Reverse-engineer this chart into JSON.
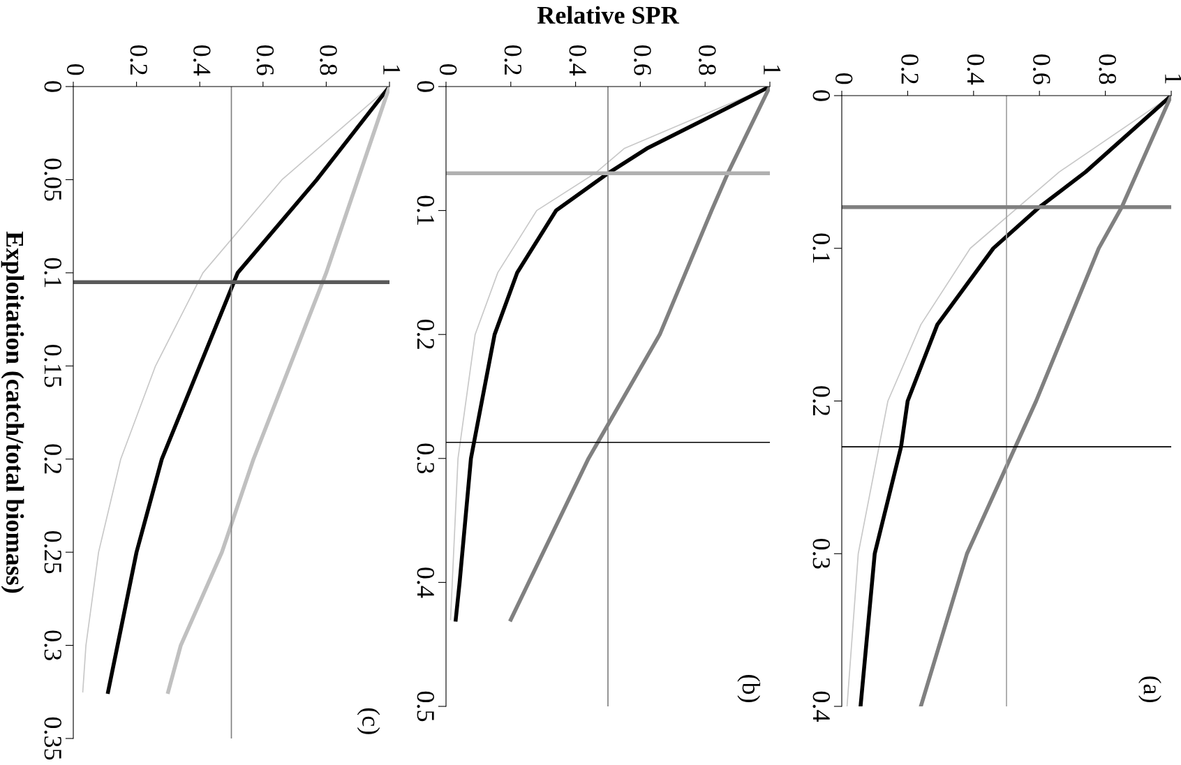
{
  "chart_data": [
    {
      "type": "line",
      "ylim": [
        0.35,
        0
      ],
      "yticks": [
        0,
        0.05,
        0.1,
        0.15,
        0.2,
        0.25,
        0.3,
        0.35
      ],
      "xlim": [
        0,
        1
      ],
      "xticks": [
        0,
        0.2,
        0.4,
        0.6,
        0.8,
        1
      ],
      "grid": false,
      "legend": false,
      "ylabel": "Exploitation (catch/total biomass)",
      "annotations": [
        "(c)"
      ],
      "series": [
        {
          "color": "#c8c8c8",
          "values": [
            0,
            0.05,
            0.1,
            0.15,
            0.2,
            0.25,
            0.3,
            0.325
          ],
          "x": [
            1,
            0.66,
            0.41,
            0.26,
            0.15,
            0.08,
            0.04,
            0.03
          ]
        },
        {
          "color": "#000000",
          "values": [
            0,
            0.05,
            0.1,
            0.15,
            0.2,
            0.25,
            0.3,
            0.325
          ],
          "x": [
            1,
            0.77,
            0.52,
            0.4,
            0.28,
            0.2,
            0.14,
            0.11
          ]
        },
        {
          "color": "#c0c0c0",
          "values": [
            0,
            0.1,
            0.2,
            0.25,
            0.3,
            0.325
          ],
          "x": [
            1,
            0.8,
            0.57,
            0.47,
            0.34,
            0.3
          ]
        }
      ],
      "ref_lines": [
        {
          "axis": "x",
          "value": 0.5,
          "color": "#808080"
        },
        {
          "axis": "y",
          "value": 0.105,
          "color": "#595959"
        }
      ]
    },
    {
      "type": "line",
      "ylim": [
        0.5,
        0
      ],
      "yticks": [
        0,
        0.1,
        0.2,
        0.3,
        0.4,
        0.5
      ],
      "xlim": [
        0,
        1
      ],
      "xticks": [
        0,
        0.2,
        0.4,
        0.6,
        0.8,
        1
      ],
      "grid": false,
      "legend": false,
      "xlabel": "Relative SPR",
      "annotations": [
        "(b)"
      ],
      "series": [
        {
          "color": "#c8c8c8",
          "values": [
            0,
            0.05,
            0.07,
            0.1,
            0.15,
            0.2,
            0.3,
            0.43
          ],
          "x": [
            1,
            0.55,
            0.46,
            0.28,
            0.16,
            0.09,
            0.037,
            0.014
          ]
        },
        {
          "color": "#000000",
          "values": [
            0,
            0.05,
            0.07,
            0.1,
            0.15,
            0.2,
            0.3,
            0.4,
            0.43
          ],
          "x": [
            1,
            0.62,
            0.5,
            0.34,
            0.22,
            0.15,
            0.077,
            0.042,
            0.03
          ]
        },
        {
          "color": "#808080",
          "values": [
            0,
            0.07,
            0.1,
            0.2,
            0.3,
            0.43
          ],
          "x": [
            1,
            0.87,
            0.82,
            0.66,
            0.44,
            0.2
          ]
        }
      ],
      "ref_lines": [
        {
          "axis": "x",
          "value": 0.5,
          "color": "#808080"
        },
        {
          "axis": "y",
          "value": 0.07,
          "color": "#b0b0b0"
        },
        {
          "axis": "y",
          "value": 0.287,
          "color": "#000000"
        }
      ]
    },
    {
      "type": "line",
      "ylim": [
        0.4,
        0
      ],
      "yticks": [
        0,
        0.1,
        0.2,
        0.3,
        0.4
      ],
      "xlim": [
        0,
        1
      ],
      "xticks": [
        0,
        0.2,
        0.4,
        0.6,
        0.8,
        1
      ],
      "grid": false,
      "legend": false,
      "annotations": [
        "(a)"
      ],
      "series": [
        {
          "color": "#c8c8c8",
          "values": [
            0,
            0.05,
            0.1,
            0.15,
            0.2,
            0.3,
            0.4
          ],
          "x": [
            1,
            0.66,
            0.39,
            0.24,
            0.14,
            0.05,
            0.016
          ]
        },
        {
          "color": "#000000",
          "values": [
            0,
            0.05,
            0.073,
            0.1,
            0.15,
            0.2,
            0.23,
            0.3,
            0.4
          ],
          "x": [
            1,
            0.74,
            0.6,
            0.46,
            0.29,
            0.2,
            0.18,
            0.1,
            0.057
          ]
        },
        {
          "color": "#808080",
          "values": [
            0,
            0.073,
            0.1,
            0.2,
            0.3,
            0.4
          ],
          "x": [
            1,
            0.85,
            0.78,
            0.59,
            0.38,
            0.24
          ]
        }
      ],
      "ref_lines": [
        {
          "axis": "x",
          "value": 0.5,
          "color": "#a0a0a0"
        },
        {
          "axis": "y",
          "value": 0.073,
          "color": "#808080"
        },
        {
          "axis": "y",
          "value": 0.23,
          "color": "#000000"
        }
      ]
    }
  ]
}
